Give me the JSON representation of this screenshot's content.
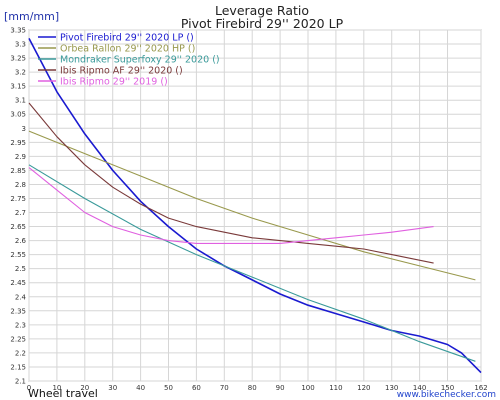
{
  "header": {
    "title_line1": "Leverage Ratio",
    "title_line2": "Pivot Firebird 29'' 2020 LP",
    "unit": "[mm/mm]"
  },
  "footer": {
    "xlabel": "Wheel travel",
    "watermark": "www.bikechecker.com"
  },
  "chart_data": {
    "type": "line",
    "title": "Leverage Ratio\nPivot Firebird 29'' 2020 LP",
    "ylabel": "[mm/mm]",
    "xlabel": "Wheel travel",
    "xlim": [
      0,
      162
    ],
    "ylim": [
      2.1,
      3.35
    ],
    "x_ticks": [
      0,
      10,
      20,
      30,
      40,
      50,
      60,
      70,
      80,
      90,
      100,
      110,
      120,
      130,
      140,
      150,
      162
    ],
    "y_ticks": [
      2.1,
      2.15,
      2.2,
      2.25,
      2.3,
      2.35,
      2.4,
      2.45,
      2.5,
      2.55,
      2.6,
      2.65,
      2.7,
      2.75,
      2.8,
      2.85,
      2.9,
      2.95,
      3.0,
      3.05,
      3.1,
      3.15,
      3.2,
      3.25,
      3.3,
      3.35
    ],
    "grid": true,
    "legend_position": "top-left",
    "series": [
      {
        "name": "Pivot Firebird 29'' 2020 LP ()",
        "color": "#1a1ad0",
        "x": [
          0,
          10,
          20,
          30,
          40,
          50,
          60,
          70,
          80,
          90,
          100,
          110,
          120,
          130,
          140,
          150,
          155,
          162
        ],
        "y": [
          3.32,
          3.13,
          2.98,
          2.85,
          2.74,
          2.65,
          2.57,
          2.51,
          2.46,
          2.41,
          2.37,
          2.34,
          2.31,
          2.28,
          2.26,
          2.23,
          2.2,
          2.13
        ]
      },
      {
        "name": "Orbea Rallon 29'' 2020 HP ()",
        "color": "#99994d",
        "x": [
          0,
          20,
          40,
          60,
          80,
          100,
          120,
          140,
          160
        ],
        "y": [
          2.99,
          2.91,
          2.83,
          2.75,
          2.68,
          2.62,
          2.56,
          2.51,
          2.46
        ]
      },
      {
        "name": "Mondraker Superfoxy 29'' 2020 ()",
        "color": "#3a9a9a",
        "x": [
          0,
          20,
          40,
          60,
          80,
          100,
          120,
          140,
          160
        ],
        "y": [
          2.87,
          2.75,
          2.64,
          2.55,
          2.47,
          2.39,
          2.32,
          2.24,
          2.17
        ]
      },
      {
        "name": "Ibis Ripmo AF 29'' 2020 ()",
        "color": "#7a3a3a",
        "x": [
          0,
          10,
          20,
          30,
          40,
          50,
          60,
          70,
          80,
          90,
          100,
          110,
          120,
          130,
          145
        ],
        "y": [
          3.09,
          2.97,
          2.87,
          2.79,
          2.73,
          2.68,
          2.65,
          2.63,
          2.61,
          2.6,
          2.59,
          2.58,
          2.57,
          2.55,
          2.52
        ]
      },
      {
        "name": "Ibis Ripmo 29'' 2019 ()",
        "color": "#e060e0",
        "x": [
          0,
          10,
          20,
          30,
          40,
          50,
          60,
          70,
          80,
          90,
          100,
          110,
          120,
          130,
          145
        ],
        "y": [
          2.86,
          2.78,
          2.7,
          2.65,
          2.62,
          2.6,
          2.59,
          2.59,
          2.59,
          2.59,
          2.6,
          2.61,
          2.62,
          2.63,
          2.65
        ]
      }
    ]
  }
}
